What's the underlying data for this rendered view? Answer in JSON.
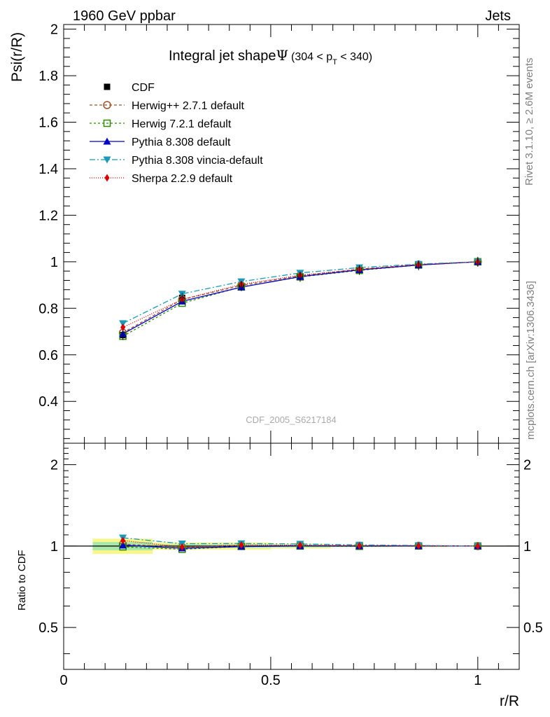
{
  "header": {
    "left": "1960 GeV ppbar",
    "right": "Jets"
  },
  "side_labels": {
    "rivet": "Rivet 3.1.10, ≥ 2.6M events",
    "mcplots": "mcplots.cern.ch [arXiv:1306.3436]"
  },
  "watermark": "CDF_2005_S6217184",
  "chart_data": [
    {
      "type": "line",
      "title_main": "Integral jet shape",
      "title_symbol": "Ψ",
      "title_range_pre": "(304 < p",
      "title_range_sub": "T",
      "title_range_post": " < 340)",
      "xlabel": "r/R",
      "ylabel": "Psi(r/R)",
      "xlim": [
        0,
        1.1
      ],
      "ylim": [
        0.22,
        2.02
      ],
      "x_ticks": [
        "0",
        "0.5",
        "1"
      ],
      "y_ticks": [
        "0.4",
        "0.6",
        "0.8",
        "1",
        "1.2",
        "1.4",
        "1.6",
        "1.8",
        "2"
      ],
      "legend_position": "top-left",
      "x": [
        0.143,
        0.286,
        0.429,
        0.571,
        0.714,
        0.857,
        1.0
      ],
      "series": [
        {
          "name": "CDF",
          "key": "data",
          "values": [
            0.685,
            0.845,
            0.895,
            0.935,
            0.965,
            0.985,
            1.0
          ],
          "color": "#000000",
          "dash": "",
          "marker": "square-filled"
        },
        {
          "name": "Herwig++ 2.7.1 default",
          "key": "herwigpp",
          "values": [
            0.695,
            0.838,
            0.898,
            0.94,
            0.968,
            0.988,
            1.0
          ],
          "color": "#a0522d",
          "dash": "4,3",
          "marker": "circle-open"
        },
        {
          "name": "Herwig 7.2.1 default",
          "key": "herwig7",
          "values": [
            0.68,
            0.822,
            0.892,
            0.935,
            0.963,
            0.986,
            1.0
          ],
          "color": "#2e8b00",
          "dash": "3,3",
          "marker": "square-open"
        },
        {
          "name": "Pythia 8.308 default",
          "key": "pythia",
          "values": [
            0.69,
            0.83,
            0.891,
            0.936,
            0.965,
            0.986,
            1.0
          ],
          "color": "#0000cc",
          "dash": "",
          "marker": "triangle-up"
        },
        {
          "name": "Pythia 8.308 vincia-default",
          "key": "vincia",
          "values": [
            0.735,
            0.862,
            0.915,
            0.952,
            0.975,
            0.99,
            1.0
          ],
          "color": "#1a9aba",
          "dash": "8,3,2,3",
          "marker": "triangle-down"
        },
        {
          "name": "Sherpa 2.2.9 default",
          "key": "sherpa",
          "values": [
            0.718,
            0.838,
            0.903,
            0.942,
            0.968,
            0.987,
            1.0
          ],
          "color": "#dd0000",
          "dash": "1,2",
          "marker": "diamond"
        }
      ]
    },
    {
      "type": "line",
      "ylabel": "Ratio to CDF",
      "xlabel": "r/R",
      "xlim": [
        0,
        1.1
      ],
      "ylim": [
        0.35,
        2.4
      ],
      "log_y": true,
      "y_ticks": [
        "0.5",
        "1",
        "2"
      ],
      "x": [
        0.143,
        0.286,
        0.429,
        0.571,
        0.714,
        0.857,
        1.0
      ],
      "bands": {
        "x_edges": [
          0.07,
          0.215,
          0.355,
          0.5,
          0.645,
          0.785,
          0.93
        ],
        "yellow_half": [
          0.065,
          0.03,
          0.03,
          0.02,
          0.01,
          0.008,
          0.004
        ],
        "green_half": [
          0.035,
          0.015,
          0.015,
          0.01,
          0.006,
          0.004,
          0.002
        ],
        "yellow_color": "#f7f78a",
        "green_color": "#a8e8a8"
      },
      "series": [
        {
          "name": "Herwig++ 2.7.1 default",
          "key": "herwigpp",
          "values": [
            1.015,
            0.992,
            1.003,
            1.005,
            1.003,
            1.003,
            1.0
          ]
        },
        {
          "name": "Herwig 7.2.1 default",
          "key": "herwig7",
          "values": [
            0.993,
            0.973,
            0.997,
            1.0,
            0.998,
            1.001,
            1.0
          ]
        },
        {
          "name": "Pythia 8.308 default",
          "key": "pythia",
          "values": [
            1.007,
            0.982,
            0.996,
            1.001,
            1.0,
            1.001,
            1.0
          ]
        },
        {
          "name": "Pythia 8.308 vincia-default",
          "key": "vincia",
          "values": [
            1.073,
            1.02,
            1.022,
            1.018,
            1.01,
            1.005,
            1.0
          ]
        },
        {
          "name": "Sherpa 2.2.9 default",
          "key": "sherpa",
          "values": [
            1.048,
            0.992,
            1.009,
            1.007,
            1.003,
            1.002,
            1.0
          ]
        }
      ]
    }
  ]
}
